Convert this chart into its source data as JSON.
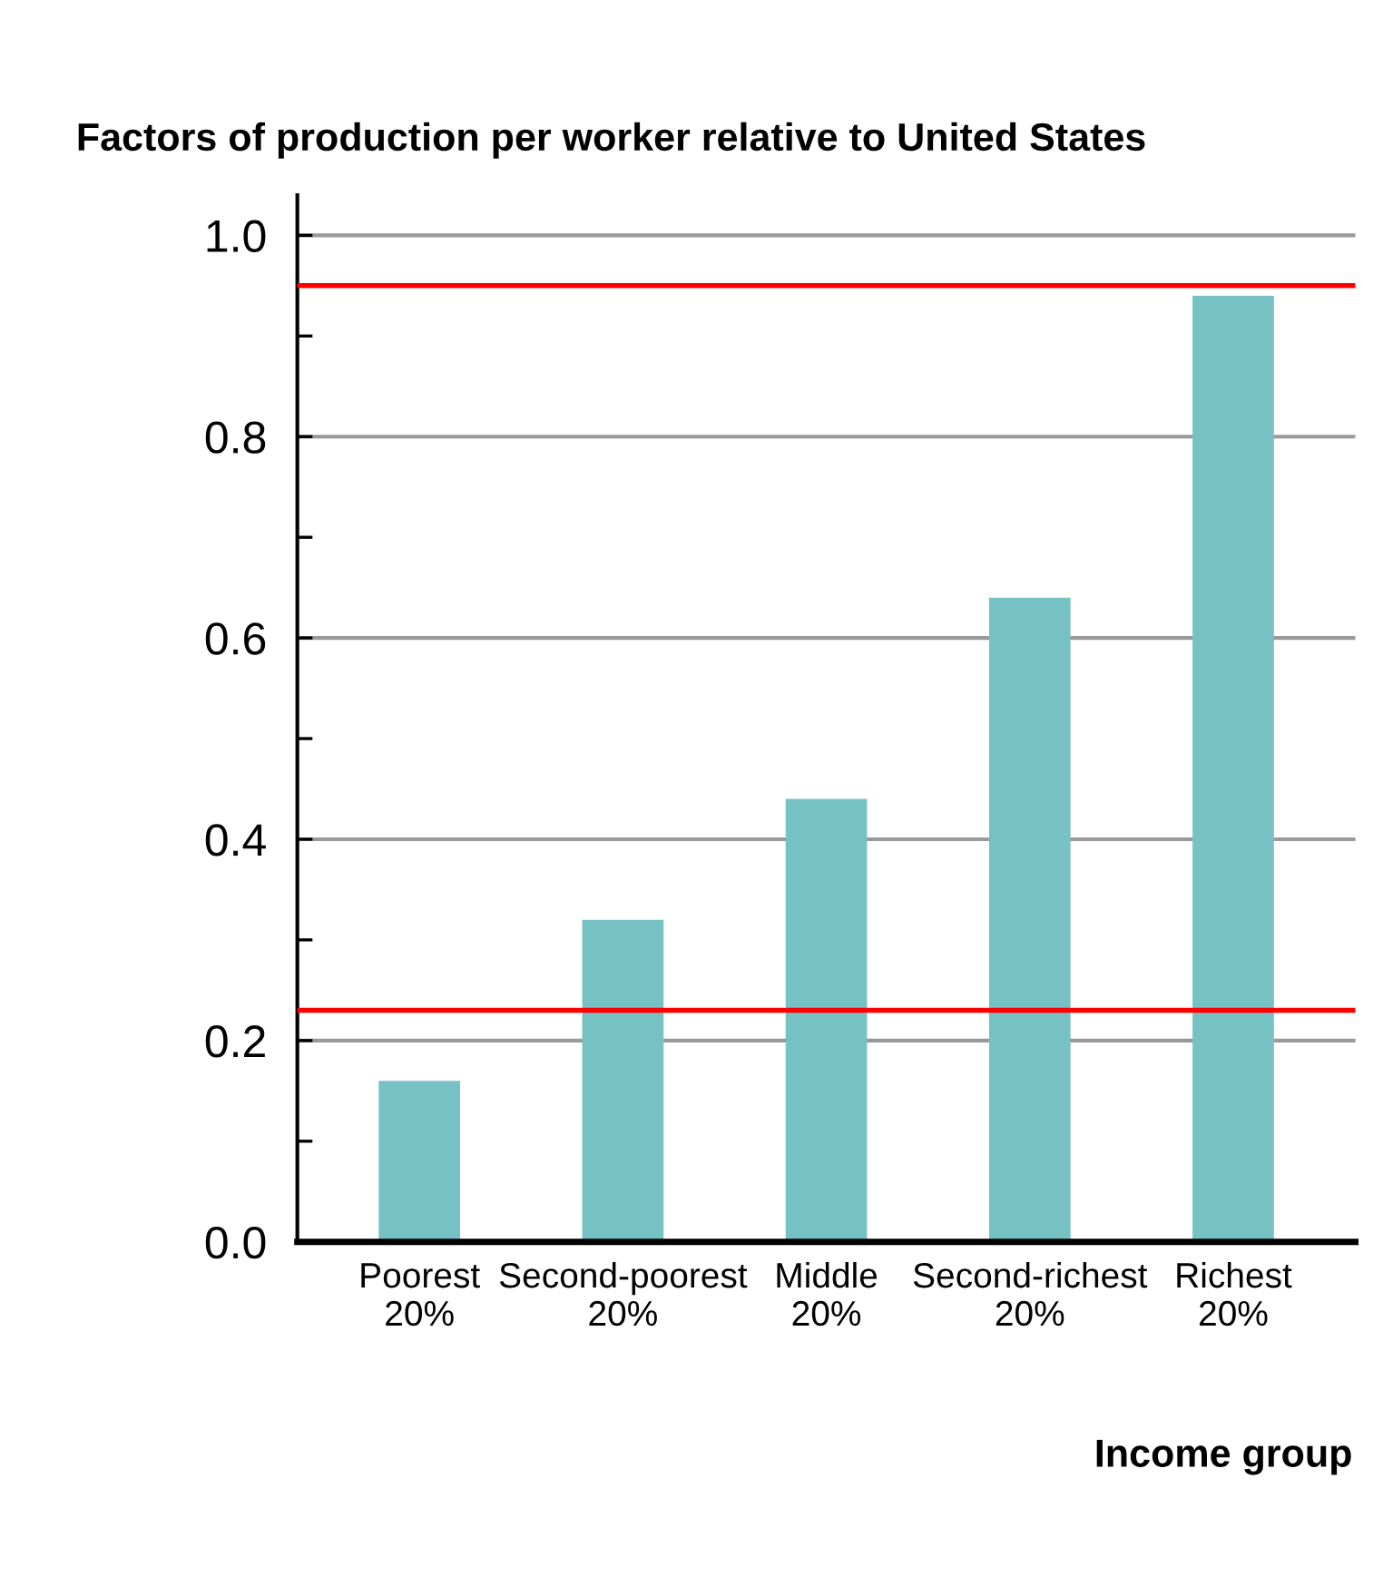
{
  "chart_data": {
    "type": "bar",
    "title": "Factors of production per worker relative to United States",
    "xlabel": "Income group",
    "categories": [
      "Poorest\n20%",
      "Second-poorest\n20%",
      "Middle\n20%",
      "Second-richest\n20%",
      "Richest\n20%"
    ],
    "values": [
      0.16,
      0.32,
      0.44,
      0.64,
      0.94
    ],
    "color": "#76c1c4",
    "ylim": [
      0,
      1.04
    ],
    "yticks": [
      "0.0",
      {
        "value": 0.1,
        "label": null
      },
      0.2,
      {
        "value": 0.3,
        "label": null
      },
      0.4,
      {
        "value": 0.5,
        "label": null
      },
      0.6,
      {
        "value": 0.7,
        "label": null
      },
      0.8,
      {
        "value": 0.9,
        "label": null
      },
      "1.0"
    ],
    "grid": "y",
    "ref_lines": [
      {
        "axis": "y",
        "value": 0.23,
        "color": "#ff0000"
      },
      {
        "axis": "y",
        "value": 0.95,
        "color": "#ff0000"
      }
    ]
  }
}
